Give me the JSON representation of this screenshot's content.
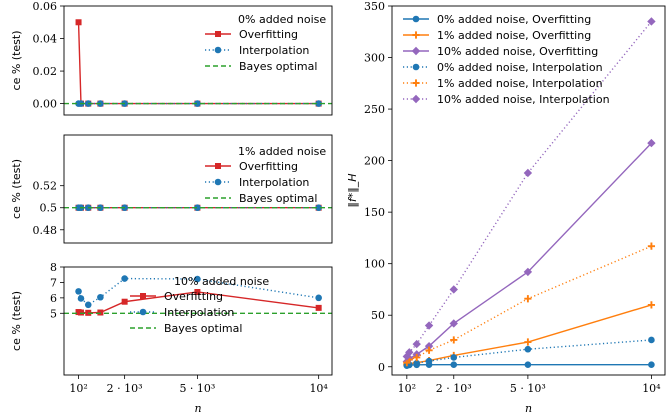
{
  "colors": {
    "red": "#d62728",
    "blue": "#1f77b4",
    "orange": "#ff7f0e",
    "purple": "#9467bd",
    "green": "#2ca02c"
  },
  "chart_data": [
    {
      "type": "line",
      "panel": "ce-0-noise",
      "ylabel": "ce % (test)",
      "xlabel": "",
      "xscale": "linear",
      "xlim": [
        -500,
        10550
      ],
      "ylim": [
        -0.007,
        0.06
      ],
      "yticks": [
        0,
        0.02,
        0.04,
        0.06
      ],
      "ytick_labels": [
        "0.00",
        "0.02",
        "0.04",
        "0.06"
      ],
      "xticks": [],
      "xtick_labels": [],
      "legend_title": "0% added noise",
      "legend_position": "top-right",
      "grid": false,
      "series": [
        {
          "name": "Overfitting",
          "style": "solid",
          "marker": "square",
          "color": "red",
          "x": [
            100,
            200,
            500,
            1000,
            2000,
            5000,
            10000
          ],
          "y": [
            0.05,
            0,
            0,
            0,
            0,
            0,
            0
          ]
        },
        {
          "name": "Interpolation",
          "style": "dotted",
          "marker": "circle",
          "color": "blue",
          "x": [
            100,
            200,
            500,
            1000,
            2000,
            5000,
            10000
          ],
          "y": [
            0,
            0,
            0,
            0,
            0,
            0,
            0
          ]
        },
        {
          "name": "Bayes optimal",
          "style": "dashed",
          "marker": "none",
          "color": "green",
          "x": [
            -500,
            10550
          ],
          "y": [
            0,
            0
          ]
        }
      ]
    },
    {
      "type": "line",
      "panel": "ce-1-noise",
      "ylabel": "ce % (test)",
      "xlabel": "",
      "xscale": "linear",
      "xlim": [
        -500,
        10550
      ],
      "ylim": [
        0.468,
        0.566
      ],
      "yticks": [
        0.48,
        0.5,
        0.52
      ],
      "ytick_labels": [
        "0.48",
        "0.5",
        "0.52"
      ],
      "xticks": [],
      "xtick_labels": [],
      "legend_title": "1% added noise",
      "legend_position": "top-right",
      "grid": false,
      "series": [
        {
          "name": "Overfitting",
          "style": "solid",
          "marker": "square",
          "color": "red",
          "x": [
            100,
            200,
            500,
            1000,
            2000,
            5000,
            10000
          ],
          "y": [
            0.5,
            0.5,
            0.5,
            0.5,
            0.5,
            0.5,
            0.5
          ]
        },
        {
          "name": "Interpolation",
          "style": "dotted",
          "marker": "circle",
          "color": "blue",
          "x": [
            100,
            200,
            500,
            1000,
            2000,
            5000,
            10000
          ],
          "y": [
            0.5,
            0.5,
            0.5,
            0.5,
            0.5,
            0.5,
            0.5
          ]
        },
        {
          "name": "Bayes optimal",
          "style": "dashed",
          "marker": "none",
          "color": "green",
          "x": [
            -500,
            10550
          ],
          "y": [
            0.5,
            0.5
          ]
        }
      ]
    },
    {
      "type": "line",
      "panel": "ce-10-noise",
      "ylabel": "ce % (test)",
      "xlabel": "n",
      "xscale": "linear",
      "xlim": [
        -500,
        10550
      ],
      "ylim": [
        1.0,
        8.0
      ],
      "yticks": [
        5,
        6,
        7,
        8
      ],
      "ytick_labels": [
        "5",
        "6",
        "7",
        "8"
      ],
      "xticks": [
        100,
        2000,
        5000,
        10000
      ],
      "xtick_labels": [
        "10²",
        "2 · 10³",
        "5 · 10³",
        "10⁴"
      ],
      "legend_title": "10% added noise",
      "legend_position": "bottom-left",
      "grid": false,
      "series": [
        {
          "name": "Overfitting",
          "style": "solid",
          "marker": "square",
          "color": "red",
          "x": [
            100,
            200,
            500,
            1000,
            2000,
            5000,
            10000
          ],
          "y": [
            5.08,
            5.05,
            5.03,
            5.05,
            5.75,
            6.38,
            5.35
          ]
        },
        {
          "name": "Interpolation",
          "style": "dotted",
          "marker": "circle",
          "color": "blue",
          "x": [
            100,
            200,
            500,
            1000,
            2000,
            5000,
            10000
          ],
          "y": [
            6.42,
            5.96,
            5.55,
            6.04,
            7.25,
            7.22,
            6.0
          ]
        },
        {
          "name": "Bayes optimal",
          "style": "dashed",
          "marker": "none",
          "color": "green",
          "x": [
            -500,
            10550
          ],
          "y": [
            5,
            5
          ]
        }
      ]
    },
    {
      "type": "line",
      "panel": "norm",
      "ylabel": "‖f*‖_H",
      "xlabel": "n",
      "xscale": "linear",
      "xlim": [
        -500,
        10550
      ],
      "ylim": [
        -8,
        350
      ],
      "yticks": [
        0,
        50,
        100,
        150,
        200,
        250,
        300,
        350
      ],
      "ytick_labels": [
        "0",
        "50",
        "100",
        "150",
        "200",
        "250",
        "300",
        "350"
      ],
      "xticks": [
        100,
        2000,
        5000,
        10000
      ],
      "xtick_labels": [
        "10²",
        "2 · 10³",
        "5 · 10³",
        "10⁴"
      ],
      "legend_position": "top-left",
      "grid": false,
      "series": [
        {
          "name": "0% added noise, Overfitting",
          "style": "solid",
          "marker": "circle",
          "color": "blue",
          "x": [
            100,
            200,
            500,
            1000,
            2000,
            5000,
            10000
          ],
          "y": [
            1.5,
            1.8,
            1.9,
            2.0,
            2.0,
            2.0,
            2.0
          ]
        },
        {
          "name": "1% added noise, Overfitting",
          "style": "solid",
          "marker": "plus",
          "color": "orange",
          "x": [
            100,
            200,
            500,
            1000,
            2000,
            5000,
            10000
          ],
          "y": [
            2,
            3,
            4,
            6,
            11,
            24,
            60
          ]
        },
        {
          "name": "10% added noise, Overfitting",
          "style": "solid",
          "marker": "diamond",
          "color": "purple",
          "x": [
            100,
            200,
            500,
            1000,
            2000,
            5000,
            10000
          ],
          "y": [
            5,
            8,
            12,
            20,
            42,
            92,
            217
          ]
        },
        {
          "name": "0% added noise, Interpolation",
          "style": "dotted",
          "marker": "circle",
          "color": "blue",
          "x": [
            100,
            200,
            500,
            1000,
            2000,
            5000,
            10000
          ],
          "y": [
            1,
            2,
            3.5,
            5.5,
            9,
            17,
            26
          ]
        },
        {
          "name": "1% added noise, Interpolation",
          "style": "dotted",
          "marker": "plus",
          "color": "orange",
          "x": [
            100,
            200,
            500,
            1000,
            2000,
            5000,
            10000
          ],
          "y": [
            4,
            7,
            9,
            16,
            26,
            66,
            117
          ]
        },
        {
          "name": "10% added noise, Interpolation",
          "style": "dotted",
          "marker": "diamond",
          "color": "purple",
          "x": [
            100,
            200,
            500,
            1000,
            2000,
            5000,
            10000
          ],
          "y": [
            10,
            14,
            22,
            40,
            75,
            188,
            335
          ]
        }
      ]
    }
  ]
}
